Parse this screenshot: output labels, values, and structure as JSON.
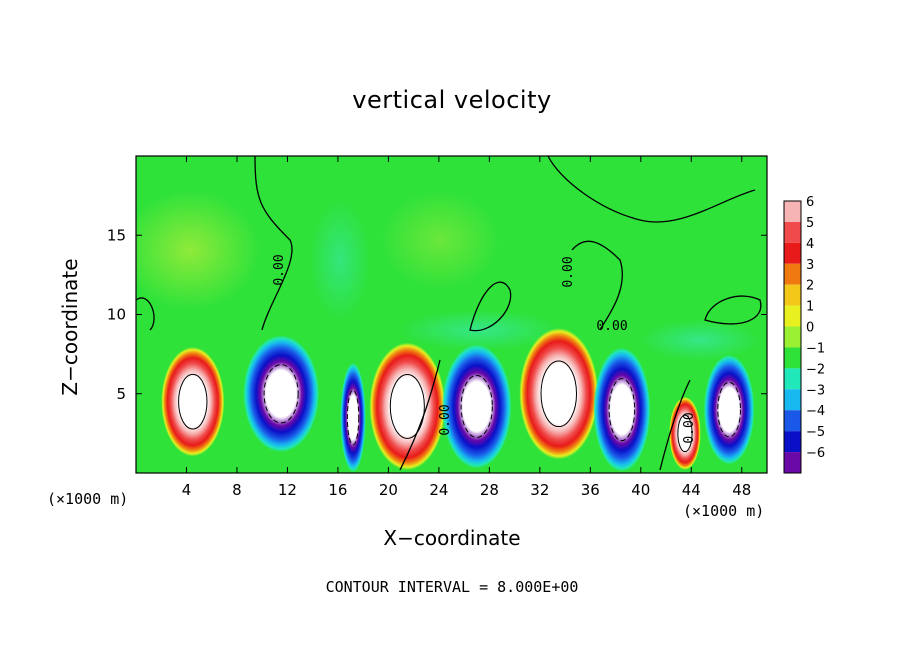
{
  "chart_data": {
    "type": "heatmap",
    "title": "vertical velocity",
    "xlabel": "X−coordinate",
    "ylabel": "Z−coordinate",
    "x_unit_left": "(×1000 m)",
    "x_unit_right": "(×1000 m)",
    "footer": "CONTOUR INTERVAL = 8.000E+00",
    "xlim": [
      0,
      50
    ],
    "ylim": [
      0,
      20
    ],
    "x_ticks": [
      4,
      8,
      12,
      16,
      20,
      24,
      28,
      32,
      36,
      40,
      44,
      48
    ],
    "x_tick_labels": [
      "4",
      "8",
      "12",
      "16",
      "20",
      "24",
      "28",
      "32",
      "36",
      "40",
      "44",
      "48"
    ],
    "y_ticks": [
      5,
      10,
      15
    ],
    "y_tick_labels": [
      "5",
      "10",
      "15"
    ],
    "colorbar_levels": [
      "6",
      "5",
      "4",
      "3",
      "2",
      "1",
      "0",
      "−1",
      "−2",
      "−3",
      "−4",
      "−5",
      "−6"
    ],
    "colorbar_colors": [
      "#f7b4b4",
      "#f04a4a",
      "#e81a1a",
      "#f07a10",
      "#f3c818",
      "#e8f020",
      "#9af032",
      "#2ee23a",
      "#20e8b8",
      "#18b8f0",
      "#1a58e8",
      "#0a10c8",
      "#6a08a8"
    ],
    "contour_labels": [
      "0.00",
      "0.00",
      "0.00",
      "0.00",
      "0.00"
    ],
    "cells": [
      {
        "x": 4.5,
        "z": 4.5,
        "w": 2.0,
        "h": 3.0,
        "sign": 1
      },
      {
        "x": 11.5,
        "z": 5.0,
        "w": 2.4,
        "h": 3.2,
        "sign": -1
      },
      {
        "x": 17.2,
        "z": 3.5,
        "w": 0.8,
        "h": 3.0,
        "sign": -1
      },
      {
        "x": 21.5,
        "z": 4.2,
        "w": 2.4,
        "h": 3.5,
        "sign": 1
      },
      {
        "x": 27.0,
        "z": 4.2,
        "w": 2.2,
        "h": 3.4,
        "sign": -1
      },
      {
        "x": 33.5,
        "z": 5.0,
        "w": 2.5,
        "h": 3.6,
        "sign": 1
      },
      {
        "x": 38.5,
        "z": 4.0,
        "w": 1.8,
        "h": 3.4,
        "sign": -1
      },
      {
        "x": 47.0,
        "z": 4.0,
        "w": 1.6,
        "h": 3.0,
        "sign": -1
      },
      {
        "x": 43.5,
        "z": 2.5,
        "w": 1.0,
        "h": 2.0,
        "sign": 1
      }
    ]
  }
}
